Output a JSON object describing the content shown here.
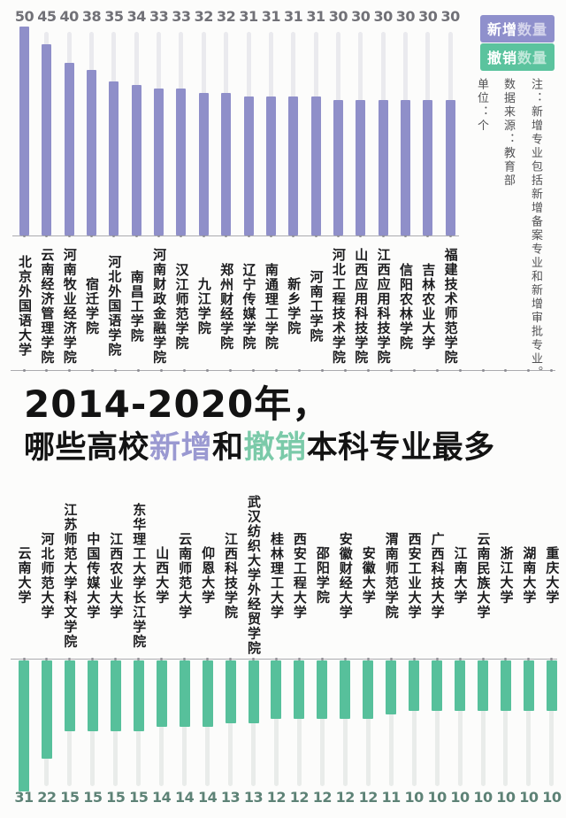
{
  "page": {
    "background": "#fcfcfb"
  },
  "legend": {
    "new_strong": "新增",
    "new_rest": "数量",
    "removed_strong": "撤销",
    "removed_rest": "数量",
    "new_color": "#8f90cc",
    "removed_color": "#5bc39e"
  },
  "notes": {
    "unit": "单位：个",
    "source": "数据来源：教育部",
    "annotation": "注：新增专业包括新增备案专业和新增审批专业。"
  },
  "title": {
    "line1": "2014-2020年，",
    "line2_prefix": "哪些高校",
    "line2_highlight_new": "新增",
    "line2_middle": "和",
    "line2_highlight_removed": "撤销",
    "line2_suffix": "本科专业最多",
    "text_color": "#131313",
    "new_color": "#9a99d1",
    "removed_color": "#7bcaa9"
  },
  "chart_data": [
    {
      "type": "bar",
      "title": "新增数量",
      "unit": "个",
      "direction": "up",
      "bar_color": "#8f8fc9",
      "track_color": "#eaeaee",
      "value_label_color": "#717177",
      "max": 50,
      "categories": [
        "北京外国语大学",
        "云南经济管理学院",
        "河南牧业经济学院",
        "宿迁学院",
        "河北外国语学院",
        "南昌工学院",
        "河南财政金融学院",
        "汉江师范学院",
        "九江学院",
        "郑州财经学院",
        "辽宁传媒学院",
        "南通理工学院",
        "新乡学院",
        "河南工学院",
        "河北工程技术学院",
        "山西应用科技学院",
        "江西应用科技学院",
        "信阳农林学院",
        "吉林农业大学",
        "福建技术师范学院"
      ],
      "values": [
        50,
        45,
        40,
        38,
        35,
        34,
        33,
        33,
        32,
        32,
        31,
        31,
        31,
        31,
        30,
        30,
        30,
        30,
        30,
        30
      ]
    },
    {
      "type": "bar",
      "title": "撤销数量",
      "unit": "个",
      "direction": "down",
      "bar_color": "#57c09b",
      "track_color": "#e9ecea",
      "value_label_color": "#5d8276",
      "max": 31,
      "categories": [
        "云南大学",
        "河北师范大学",
        "江苏师范大学科文学院",
        "中国传媒大学",
        "江西农业大学",
        "东华理工大学长江学院",
        "山西大学",
        "云南师范大学",
        "仰恩大学",
        "江西科技学院",
        "武汉纺织大学外经贸学院",
        "桂林理工大学",
        "西安工程大学",
        "邵阳学院",
        "安徽财经大学",
        "安徽大学",
        "渭南师范学院",
        "西安工业大学",
        "广西科技大学",
        "江南大学",
        "云南民族大学",
        "浙江大学",
        "湖南大学",
        "重庆大学"
      ],
      "values": [
        31,
        22,
        15,
        15,
        15,
        15,
        14,
        14,
        14,
        13,
        13,
        12,
        12,
        12,
        12,
        12,
        11,
        10,
        10,
        10,
        10,
        10,
        10,
        10
      ]
    }
  ]
}
